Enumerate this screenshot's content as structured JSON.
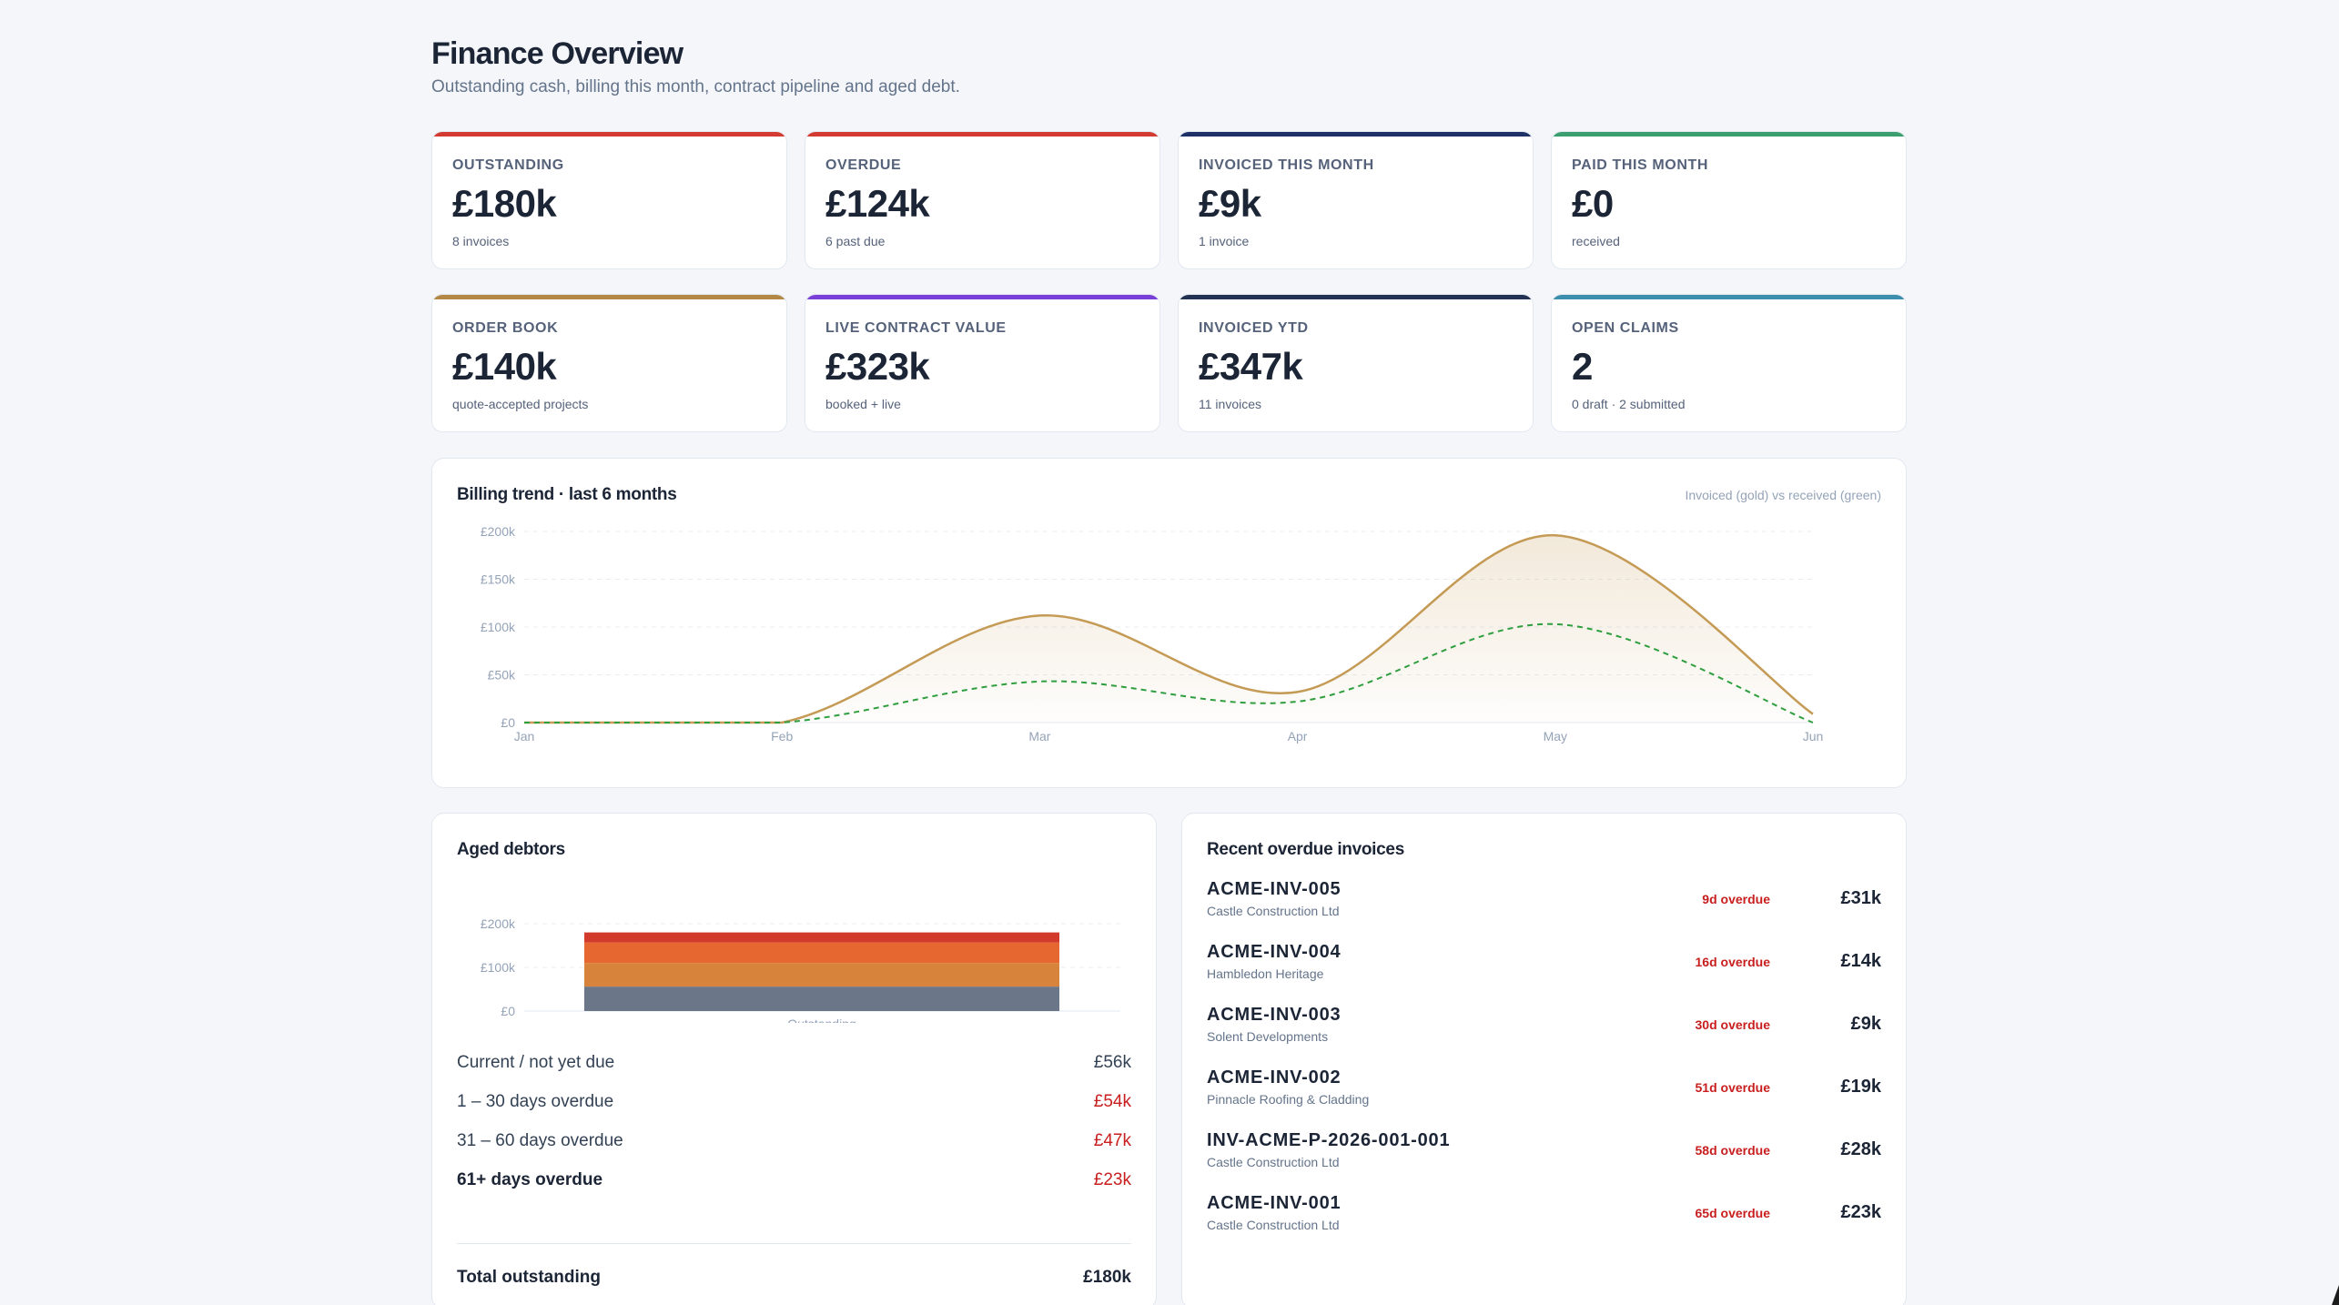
{
  "header": {
    "title": "Finance Overview",
    "subtitle": "Outstanding cash, billing this month, contract pipeline and aged debt."
  },
  "kpis": [
    {
      "label": "OUTSTANDING",
      "value": "£180k",
      "note": "8 invoices",
      "color": "#d33a32"
    },
    {
      "label": "OVERDUE",
      "value": "£124k",
      "note": "6 past due",
      "color": "#d33a32"
    },
    {
      "label": "INVOICED THIS MONTH",
      "value": "£9k",
      "note": "1 invoice",
      "color": "#1f3268"
    },
    {
      "label": "PAID THIS MONTH",
      "value": "£0",
      "note": "received",
      "color": "#3a9e6e"
    },
    {
      "label": "ORDER BOOK",
      "value": "£140k",
      "note": "quote-accepted projects",
      "color": "#b38845"
    },
    {
      "label": "LIVE CONTRACT VALUE",
      "value": "£323k",
      "note": "booked + live",
      "color": "#7a3fd8"
    },
    {
      "label": "INVOICED YTD",
      "value": "£347k",
      "note": "11 invoices",
      "color": "#233252"
    },
    {
      "label": "OPEN CLAIMS",
      "value": "2",
      "note": "0 draft · 2 submitted",
      "color": "#3b8fad"
    }
  ],
  "trend": {
    "title": "Billing trend · last 6 months",
    "legend_note": "Invoiced (gold) vs received (green)"
  },
  "aged": {
    "title": "Aged debtors",
    "rows": [
      {
        "label": "Current / not yet due",
        "amount": "£56k"
      },
      {
        "label": "1 – 30 days overdue",
        "amount": "£54k"
      },
      {
        "label": "31 – 60 days overdue",
        "amount": "£47k"
      },
      {
        "label": "61+ days overdue",
        "amount": "£23k"
      }
    ],
    "total_label": "Total outstanding",
    "total_amount": "£180k"
  },
  "overdue": {
    "title": "Recent overdue invoices",
    "items": [
      {
        "id": "ACME-INV-005",
        "client": "Castle Construction Ltd",
        "days": "9d overdue",
        "amount": "£31k"
      },
      {
        "id": "ACME-INV-004",
        "client": "Hambledon Heritage",
        "days": "16d overdue",
        "amount": "£14k"
      },
      {
        "id": "ACME-INV-003",
        "client": "Solent Developments",
        "days": "30d overdue",
        "amount": "£9k"
      },
      {
        "id": "ACME-INV-002",
        "client": "Pinnacle Roofing & Cladding",
        "days": "51d overdue",
        "amount": "£19k"
      },
      {
        "id": "INV-ACME-P-2026-001-001",
        "client": "Castle Construction Ltd",
        "days": "58d overdue",
        "amount": "£28k"
      },
      {
        "id": "ACME-INV-001",
        "client": "Castle Construction Ltd",
        "days": "65d overdue",
        "amount": "£23k"
      }
    ]
  },
  "chart_data": [
    {
      "type": "area",
      "title": "Billing trend · last 6 months",
      "categories": [
        "Jan",
        "Feb",
        "Mar",
        "Apr",
        "May",
        "Jun"
      ],
      "ylim": [
        0,
        200000
      ],
      "yticks": [
        "£0",
        "£50k",
        "£100k",
        "£150k",
        "£200k"
      ],
      "grid": true,
      "series": [
        {
          "values": [
            0,
            0,
            112000,
            32000,
            196000,
            9000
          ],
          "color": "#c49a55"
        },
        {
          "values": [
            0,
            0,
            43000,
            22000,
            103000,
            0
          ],
          "color": "#2e9e3e"
        }
      ]
    },
    {
      "type": "bar",
      "title": "Aged debtors",
      "categories": [
        "Outstanding"
      ],
      "ylim": [
        0,
        200000
      ],
      "yticks": [
        "£0",
        "£100k",
        "£200k"
      ],
      "grid": true,
      "series": [
        {
          "name": "Current / not yet due",
          "values": [
            56000
          ],
          "color": "#6b7689"
        },
        {
          "name": "1 – 30 days overdue",
          "values": [
            54000
          ],
          "color": "#d8833b"
        },
        {
          "name": "31 – 60 days overdue",
          "values": [
            47000
          ],
          "color": "#e6672f"
        },
        {
          "name": "61+ days overdue",
          "values": [
            23000
          ],
          "color": "#d23b2c"
        }
      ]
    }
  ]
}
